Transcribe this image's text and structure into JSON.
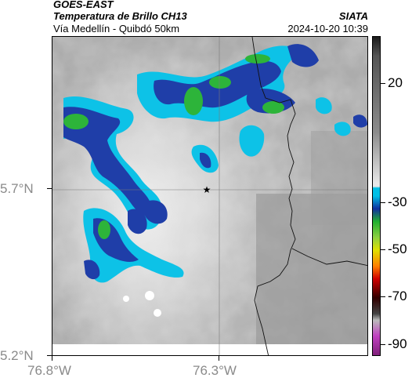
{
  "header": {
    "satellite": "GOES-EAST",
    "product": "Temperatura de Brillo CH13",
    "route": "Vía Medellín - Quibdó 50km",
    "agency": "SIATA",
    "datetime": "2024-10-20 10:39"
  },
  "axes": {
    "y_labels": [
      {
        "text": "5.7°N",
        "value": 5.7
      },
      {
        "text": "5.2°N",
        "value": 5.2
      }
    ],
    "x_labels": [
      {
        "text": "76.8°W",
        "value": -76.8
      },
      {
        "text": "76.3°W",
        "value": -76.3
      }
    ]
  },
  "marker": {
    "name": "star",
    "lon": -76.32,
    "lat": 5.7
  },
  "colorbar": {
    "labels": [
      "20",
      "-30",
      "-50",
      "-70",
      "-90"
    ],
    "values": [
      20,
      -30,
      -50,
      -70,
      -90
    ],
    "range": [
      -95,
      40
    ],
    "colors": {
      "top": "#1a1a1a",
      "mid_gray": "#8c8c8c",
      "light": "#e8e8e8",
      "cyan": "#00c0e6",
      "blue": "#1030a0",
      "green": "#20b030",
      "yellow": "#e0e000",
      "orange": "#ff8000",
      "red": "#d00000",
      "dark": "#300000",
      "magenta": "#c040c0"
    }
  }
}
